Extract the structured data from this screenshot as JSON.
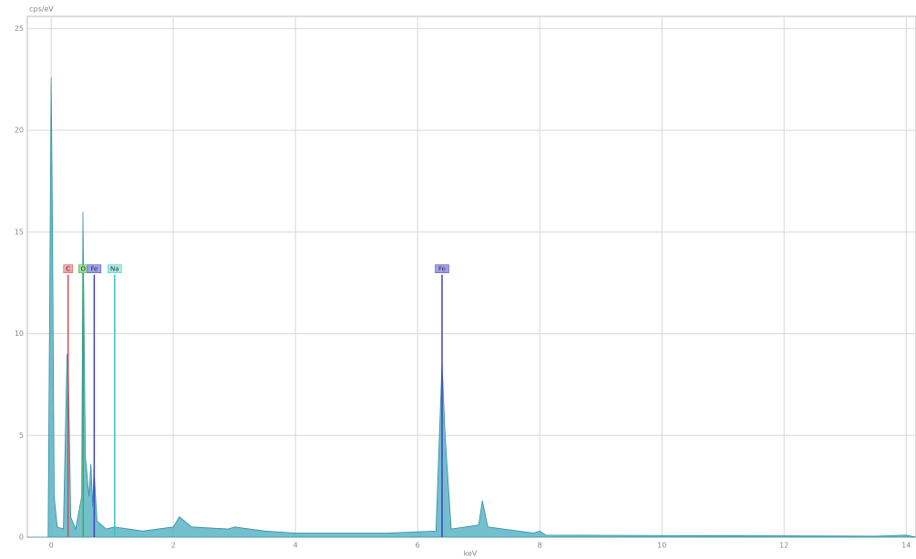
{
  "chart_data": {
    "type": "area",
    "y_label": "cps/eV",
    "x_label": "keV",
    "x": [
      -0.4,
      -0.05,
      0.0,
      0.02,
      0.05,
      0.1,
      0.2,
      0.26,
      0.28,
      0.32,
      0.4,
      0.5,
      0.52,
      0.56,
      0.62,
      0.65,
      0.68,
      0.7,
      0.75,
      0.9,
      1.04,
      1.5,
      2.0,
      2.1,
      2.3,
      2.9,
      3.0,
      3.5,
      4.0,
      5.5,
      6.3,
      6.4,
      6.45,
      6.55,
      7.0,
      7.06,
      7.15,
      7.9,
      8.0,
      8.1,
      10,
      13.5,
      14,
      14.16
    ],
    "series": [
      {
        "color": "#5ab4c6",
        "values": [
          0,
          0,
          22.6,
          16,
          2,
          0.5,
          0.4,
          9,
          8.6,
          1,
          0.4,
          2,
          16,
          4,
          2,
          3.6,
          1.5,
          3.4,
          0.8,
          0.4,
          0.5,
          0.3,
          0.5,
          1.0,
          0.5,
          0.4,
          0.5,
          0.3,
          0.2,
          0.2,
          0.3,
          8.6,
          5,
          0.4,
          0.6,
          1.8,
          0.5,
          0.2,
          0.3,
          0.1,
          0.08,
          0.05,
          0.1,
          0
        ]
      }
    ],
    "markers": [
      {
        "label": "C",
        "x": 0.277,
        "height": 12.9,
        "color": "#d05050",
        "box": "#f0a8a8"
      },
      {
        "label": "O",
        "x": 0.525,
        "height": 12.9,
        "color": "#40b040",
        "box": "#98e098"
      },
      {
        "label": "Fe",
        "x": 0.705,
        "height": 12.9,
        "color": "#4040c0",
        "box": "#a0a0e8"
      },
      {
        "label": "Na",
        "x": 1.04,
        "height": 12.9,
        "color": "#40c0c0",
        "box": "#a8eae4"
      },
      {
        "label": "Fe",
        "x": 6.4,
        "height": 12.9,
        "color": "#4040c0",
        "box": "#a0a0e8"
      }
    ],
    "xlim": [
      -0.39,
      14.16
    ],
    "ylim": [
      0,
      25.6
    ],
    "xticks": [
      0,
      2,
      4,
      6,
      8,
      10,
      12,
      14
    ],
    "yticks": [
      0,
      5,
      10,
      15,
      20,
      25
    ],
    "grid": true
  }
}
